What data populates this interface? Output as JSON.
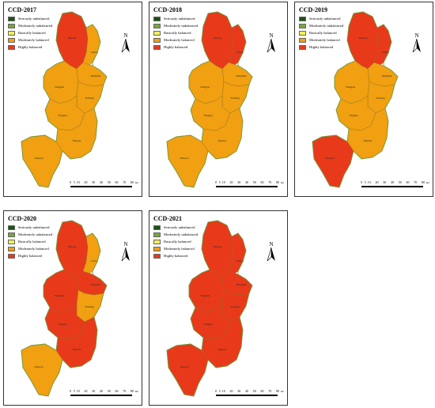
{
  "legend": {
    "items": [
      {
        "label": "Seriously unbalanced",
        "color": "#1a5214"
      },
      {
        "label": "Moderately unbalanced",
        "color": "#78a83a"
      },
      {
        "label": "Basically balanced",
        "color": "#f2ef5a"
      },
      {
        "label": "Moderately balanced",
        "color": "#f0a010"
      },
      {
        "label": "Highly balanced",
        "color": "#e83a1a"
      }
    ]
  },
  "north_label": "N",
  "scale": {
    "ticks": [
      "0",
      "5",
      "10",
      "20",
      "30",
      "40",
      "50",
      "60",
      "70",
      "80"
    ],
    "unit": "km"
  },
  "region_labels": {
    "beiyang": "Beiyang",
    "laibao": "Laibao",
    "tiangpan": "Tiangpan",
    "mingshan": "Mingshan",
    "yuchang": "Yuchang",
    "yingjing": "Yingjing",
    "shiyuan": "Shiyuan",
    "shenyan": "Shenyan"
  },
  "maps": [
    {
      "title": "CCD-2017",
      "classes": {
        "beiyang": "Highly balanced",
        "laibao": "Moderately balanced",
        "tiangpan": "Moderately balanced",
        "mingshan": "Moderately balanced",
        "yuchang": "Moderately balanced",
        "yingjing": "Moderately balanced",
        "shiyuan": "Moderately balanced",
        "shenyan": "Moderately balanced"
      }
    },
    {
      "title": "CCD-2018",
      "classes": {
        "beiyang": "Highly balanced",
        "laibao": "Highly balanced",
        "tiangpan": "Moderately balanced",
        "mingshan": "Moderately balanced",
        "yuchang": "Moderately balanced",
        "yingjing": "Moderately balanced",
        "shiyuan": "Moderately balanced",
        "shenyan": "Moderately balanced"
      }
    },
    {
      "title": "CCD-2019",
      "classes": {
        "beiyang": "Highly balanced",
        "laibao": "Highly balanced",
        "tiangpan": "Moderately balanced",
        "mingshan": "Moderately balanced",
        "yuchang": "Moderately balanced",
        "yingjing": "Moderately balanced",
        "shiyuan": "Moderately balanced",
        "shenyan": "Highly balanced"
      }
    },
    {
      "title": "CCD-2020",
      "classes": {
        "beiyang": "Highly balanced",
        "laibao": "Moderately balanced",
        "tiangpan": "Highly balanced",
        "mingshan": "Highly balanced",
        "yuchang": "Moderately balanced",
        "yingjing": "Highly balanced",
        "shiyuan": "Highly balanced",
        "shenyan": "Moderately balanced"
      }
    },
    {
      "title": "CCD-2021",
      "classes": {
        "beiyang": "Highly balanced",
        "laibao": "Highly balanced",
        "tiangpan": "Highly balanced",
        "mingshan": "Highly balanced",
        "yuchang": "Highly balanced",
        "yingjing": "Highly balanced",
        "shiyuan": "Highly balanced",
        "shenyan": "Highly balanced"
      }
    }
  ]
}
